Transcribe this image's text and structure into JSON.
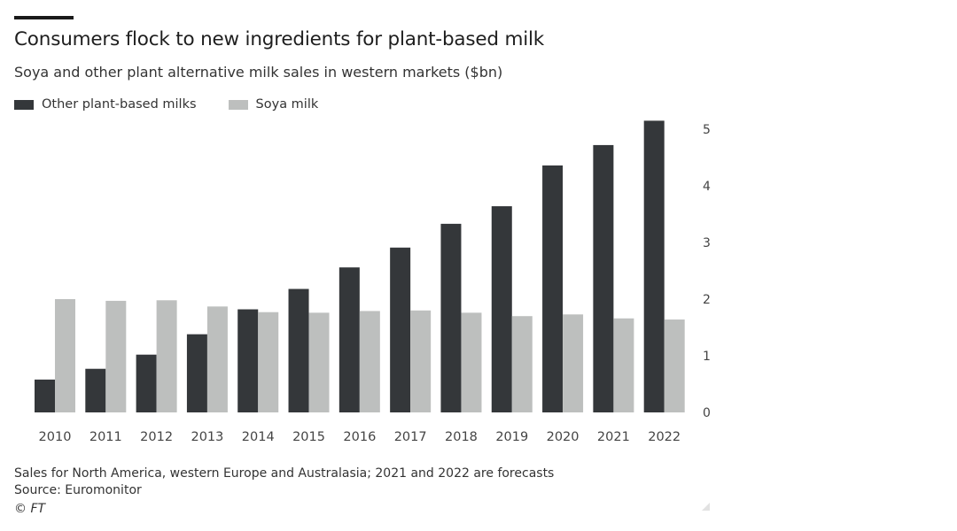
{
  "title": "Consumers flock to new ingredients for plant-based milk",
  "subtitle": "Soya and other plant alternative milk sales in western markets ($bn)",
  "footer": {
    "note": "Sales for North America, western Europe and Australasia; 2021 and 2022 are forecasts",
    "source": "Source: Euromonitor",
    "copyright": "© FT"
  },
  "colors": {
    "other": "#34373a",
    "soya": "#bdbfbe",
    "axis": "#3a3a3a"
  },
  "chart_data": {
    "type": "bar",
    "title": "Consumers flock to new ingredients for plant-based milk",
    "subtitle": "Soya and other plant alternative milk sales in western markets ($bn)",
    "categories": [
      "2010",
      "2011",
      "2012",
      "2013",
      "2014",
      "2015",
      "2016",
      "2017",
      "2018",
      "2019",
      "2020",
      "2021",
      "2022"
    ],
    "series": [
      {
        "name": "Other plant-based milks",
        "values": [
          0.58,
          0.77,
          1.02,
          1.38,
          1.82,
          2.18,
          2.56,
          2.91,
          3.33,
          3.64,
          4.36,
          4.72,
          5.15
        ]
      },
      {
        "name": "Soya milk",
        "values": [
          2.0,
          1.97,
          1.98,
          1.87,
          1.77,
          1.76,
          1.79,
          1.8,
          1.76,
          1.7,
          1.73,
          1.66,
          1.64
        ]
      }
    ],
    "yticks": [
      "0",
      "1",
      "2",
      "3",
      "4",
      "5"
    ],
    "ylim": [
      0,
      5.3
    ],
    "yaxis_position": "right",
    "grid": false,
    "legend": "top-left",
    "xlabel": "",
    "ylabel": ""
  }
}
